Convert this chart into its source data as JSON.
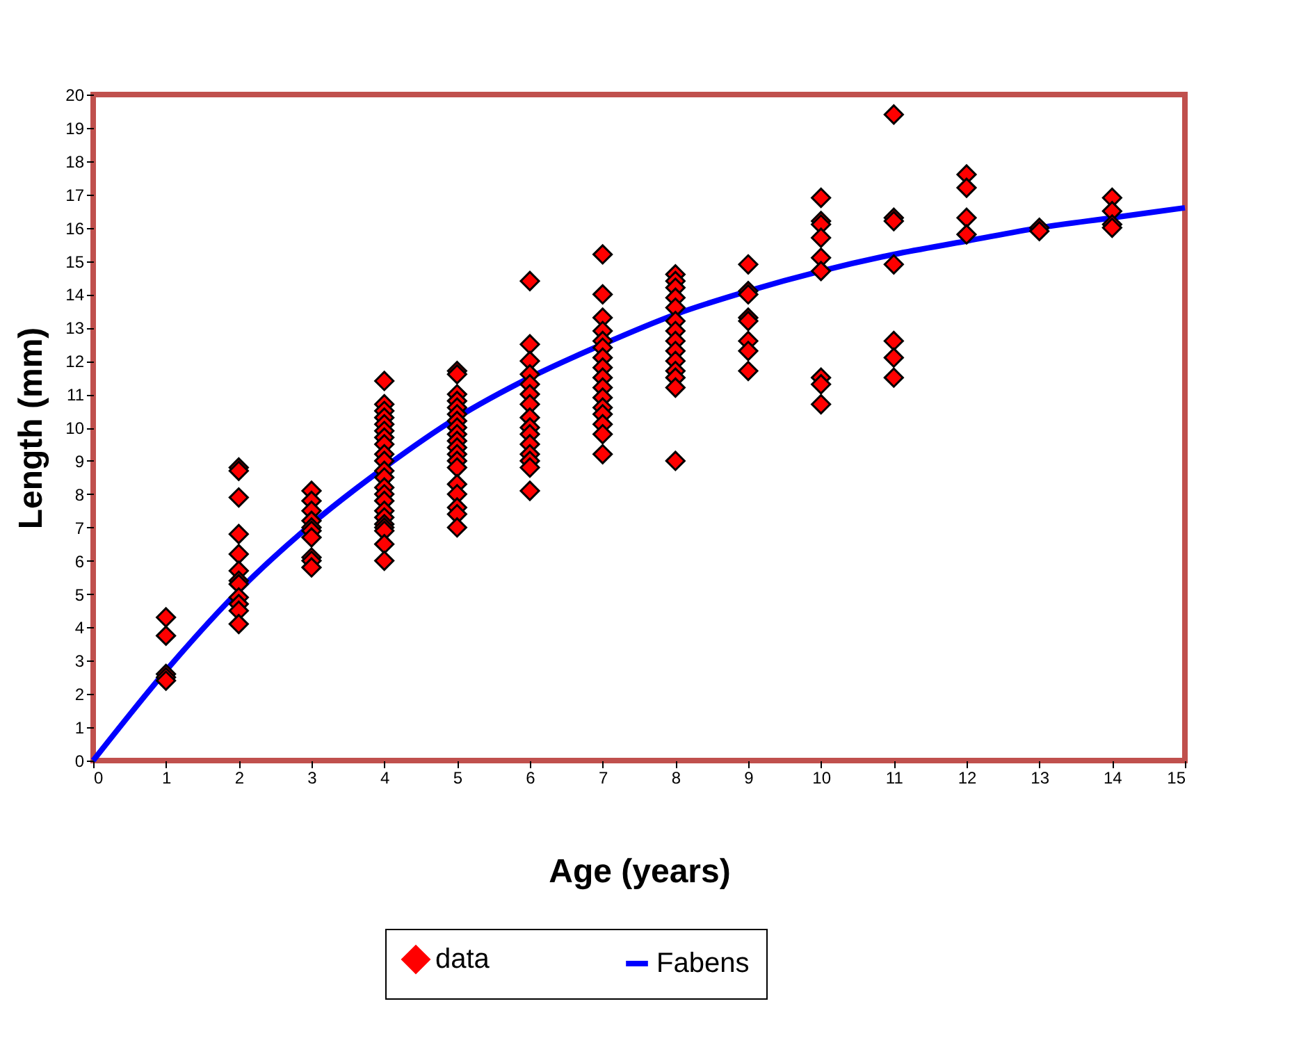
{
  "chart_data": {
    "type": "scatter",
    "xlabel": "Age (years)",
    "ylabel": "Length (mm)",
    "xlim": [
      0,
      15
    ],
    "xticks": [
      0,
      1,
      2,
      3,
      4,
      5,
      6,
      7,
      8,
      9,
      10,
      11,
      12,
      13,
      14,
      15
    ],
    "ylim": [
      0,
      20
    ],
    "yticks": [
      0,
      1,
      2,
      3,
      4,
      5,
      6,
      7,
      8,
      9,
      10,
      11,
      12,
      13,
      14,
      15,
      16,
      17,
      18,
      19,
      20
    ],
    "grid": false,
    "legend": "bottom",
    "series": [
      {
        "name": "data",
        "type": "scatter",
        "marker": "diamond",
        "color": "#ff0000",
        "x": [
          1,
          1,
          1,
          1,
          1,
          2,
          2,
          2,
          2,
          2,
          2,
          2,
          2,
          2,
          2,
          2,
          2,
          3,
          3,
          3,
          3,
          3,
          3,
          3,
          3,
          3,
          3,
          4,
          4,
          4,
          4,
          4,
          4,
          4,
          4,
          4,
          4,
          4,
          4,
          4,
          4,
          4,
          4,
          4,
          4,
          4,
          4,
          4,
          4,
          5,
          5,
          5,
          5,
          5,
          5,
          5,
          5,
          5,
          5,
          5,
          5,
          5,
          5,
          5,
          5,
          5,
          5,
          5,
          6,
          6,
          6,
          6,
          6,
          6,
          6,
          6,
          6,
          6,
          6,
          6,
          6,
          6,
          6,
          7,
          7,
          7,
          7,
          7,
          7,
          7,
          7,
          7,
          7,
          7,
          7,
          7,
          7,
          7,
          7,
          8,
          8,
          8,
          8,
          8,
          8,
          8,
          8,
          8,
          8,
          8,
          8,
          8,
          8,
          9,
          9,
          9,
          9,
          9,
          9,
          9,
          9,
          10,
          10,
          10,
          10,
          10,
          10,
          10,
          10,
          10,
          11,
          11,
          11,
          11,
          11,
          11,
          11,
          12,
          12,
          12,
          12,
          13,
          13,
          14,
          14,
          14,
          14
        ],
        "values": [
          4.3,
          3.75,
          2.6,
          2.5,
          2.4,
          8.8,
          8.7,
          7.9,
          6.8,
          6.2,
          5.7,
          5.4,
          5.3,
          4.9,
          4.7,
          4.5,
          4.1,
          8.1,
          7.8,
          7.5,
          7.2,
          7.0,
          6.9,
          6.7,
          6.1,
          6.0,
          5.8,
          11.4,
          10.7,
          10.5,
          10.3,
          10.1,
          9.9,
          9.7,
          9.5,
          9.2,
          9.0,
          8.7,
          8.5,
          8.2,
          8.0,
          7.8,
          7.5,
          7.3,
          7.1,
          7.0,
          6.9,
          6.5,
          6.0,
          11.7,
          11.6,
          11.0,
          10.8,
          10.6,
          10.4,
          10.2,
          10.0,
          9.8,
          9.6,
          9.4,
          9.2,
          9.0,
          8.8,
          8.3,
          8.0,
          7.6,
          7.4,
          7.0,
          14.4,
          12.5,
          12.0,
          11.6,
          11.3,
          11.0,
          10.7,
          10.3,
          10.0,
          9.8,
          9.5,
          9.2,
          9.0,
          8.8,
          8.1,
          15.2,
          14.0,
          13.3,
          12.9,
          12.6,
          12.4,
          12.1,
          11.8,
          11.5,
          11.2,
          10.9,
          10.6,
          10.4,
          10.1,
          9.8,
          9.2,
          14.6,
          14.4,
          14.2,
          13.9,
          13.6,
          13.2,
          12.9,
          12.6,
          12.3,
          12.0,
          11.7,
          11.5,
          11.2,
          9.0,
          14.9,
          14.1,
          14.0,
          13.3,
          13.2,
          12.6,
          12.3,
          11.7,
          16.9,
          16.2,
          16.1,
          15.7,
          15.1,
          14.7,
          11.5,
          11.3,
          10.7,
          19.4,
          16.3,
          16.2,
          14.9,
          12.6,
          12.1,
          11.5,
          17.6,
          17.2,
          16.3,
          15.8,
          16.0,
          15.9,
          16.9,
          16.5,
          16.1,
          16.0
        ]
      },
      {
        "name": "Fabens",
        "type": "line",
        "line_style": "solid",
        "color": "#0000ff",
        "x": [
          0,
          1,
          2,
          3,
          4,
          5,
          6,
          7,
          8,
          9,
          10,
          11,
          12,
          13,
          14,
          15
        ],
        "values": [
          0,
          2.7,
          5.1,
          7.1,
          8.8,
          10.3,
          11.5,
          12.5,
          13.4,
          14.1,
          14.7,
          15.2,
          15.6,
          16.0,
          16.3,
          16.6
        ]
      }
    ]
  }
}
